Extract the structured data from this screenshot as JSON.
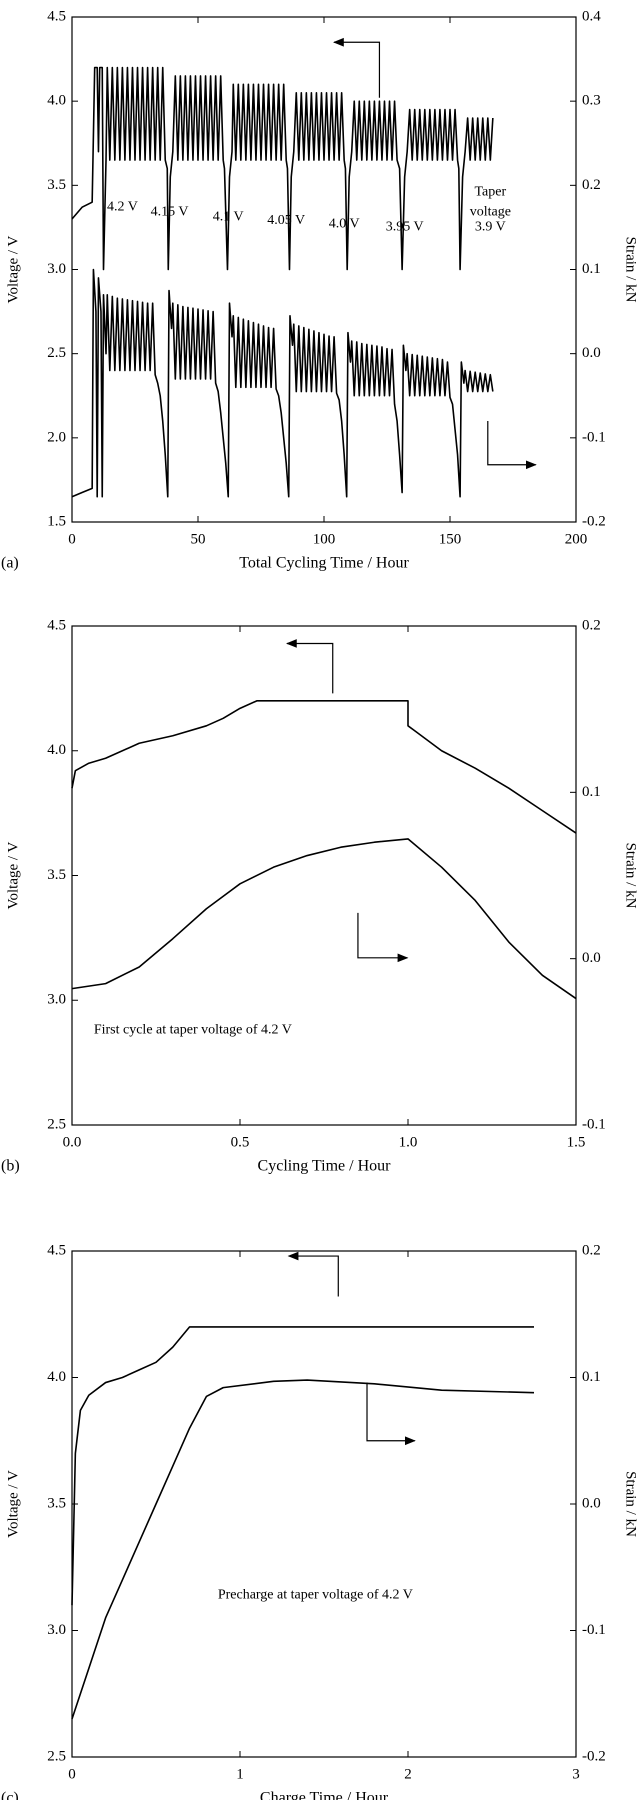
{
  "chart_data": [
    {
      "type": "line",
      "panel": "(a)",
      "xlabel": "Total Cycling Time / Hour",
      "ylabel": "Voltage / V",
      "y2label": "Strain / kN",
      "xlim": [
        0,
        200
      ],
      "xticks": [
        0,
        50,
        100,
        150,
        200
      ],
      "ylim": [
        1.5,
        4.5
      ],
      "yticks": [
        1.5,
        {
          "value": 2,
          "label": "2.0"
        },
        2.5,
        {
          "value": 3,
          "label": "3.0"
        },
        3.5,
        {
          "value": 4,
          "label": "4.0"
        },
        4.5
      ],
      "y2lim": [
        -0.2,
        0.4
      ],
      "y2ticks": [
        -0.2,
        -0.1,
        {
          "value": 0,
          "label": "0.0"
        },
        0.1,
        0.2,
        0.3,
        0.4
      ],
      "annotations": [
        "4.2 V",
        "4.15 V",
        "4.1 V",
        "4.05 V",
        "4.0 V",
        "3.95 V",
        "Taper",
        "voltage",
        "3.9 V"
      ],
      "series": [
        {
          "color": "#000000",
          "axis": "y",
          "x": [
            0,
            4,
            8,
            9,
            10,
            10.5,
            11,
            12,
            12.5,
            13.5,
            14,
            15,
            16,
            17,
            18,
            19,
            20,
            21,
            22,
            23,
            24,
            25,
            26,
            27,
            28,
            29,
            30,
            31,
            32,
            33,
            34,
            35,
            36,
            37,
            37.8,
            38.2,
            39,
            40,
            41,
            42,
            43,
            44,
            45,
            46,
            47,
            48,
            49,
            50,
            51,
            52,
            53,
            54,
            55,
            56,
            57,
            58,
            59,
            60,
            60.5,
            61.7,
            62.5,
            63.5,
            64,
            65,
            66,
            67,
            68,
            69,
            70,
            71,
            72,
            73,
            74,
            75,
            76,
            77,
            78,
            79,
            80,
            81,
            82,
            83,
            84,
            85,
            85.5,
            86.3,
            87,
            88,
            89,
            90,
            91,
            92,
            93,
            94,
            95,
            96,
            97,
            98,
            99,
            100,
            101,
            102,
            103,
            104,
            105,
            106,
            107,
            108,
            108.5,
            109.2,
            110,
            111,
            112,
            113,
            114,
            115,
            116,
            117,
            118,
            119,
            120,
            121,
            122,
            123,
            124,
            125,
            126,
            127,
            128,
            129,
            130,
            131,
            132,
            133,
            134,
            135,
            136,
            137,
            138,
            139,
            140,
            141,
            142,
            143,
            144,
            145,
            146,
            147,
            148,
            149,
            150,
            151,
            152,
            153,
            153.5,
            154,
            155,
            156,
            157,
            158,
            159,
            160,
            161,
            162,
            163,
            164,
            165,
            166,
            167
          ],
          "values": [
            3.3,
            3.37,
            3.4,
            4.2,
            4.2,
            3.7,
            4.2,
            4.2,
            3.0,
            3.65,
            4.2,
            3.65,
            4.2,
            3.65,
            4.2,
            3.65,
            4.2,
            3.65,
            4.2,
            3.65,
            4.2,
            3.65,
            4.2,
            3.65,
            4.2,
            3.65,
            4.2,
            3.65,
            4.2,
            3.65,
            4.2,
            3.65,
            4.2,
            3.65,
            3.6,
            3.0,
            3.55,
            3.7,
            4.15,
            3.65,
            4.15,
            3.65,
            4.15,
            3.65,
            4.15,
            3.65,
            4.15,
            3.65,
            4.15,
            3.65,
            4.15,
            3.65,
            4.15,
            3.65,
            4.15,
            3.65,
            4.15,
            3.65,
            3.6,
            3.0,
            3.55,
            3.7,
            4.1,
            3.65,
            4.1,
            3.65,
            4.1,
            3.65,
            4.1,
            3.65,
            4.1,
            3.65,
            4.1,
            3.65,
            4.1,
            3.65,
            4.1,
            3.65,
            4.1,
            3.65,
            4.1,
            3.65,
            4.1,
            3.65,
            3.6,
            3.0,
            3.55,
            3.7,
            4.05,
            3.65,
            4.05,
            3.65,
            4.05,
            3.65,
            4.05,
            3.65,
            4.05,
            3.65,
            4.05,
            3.65,
            4.05,
            3.65,
            4.05,
            3.65,
            4.05,
            3.65,
            4.05,
            3.65,
            3.6,
            3.0,
            3.55,
            3.7,
            4.0,
            3.65,
            4.0,
            3.65,
            4.0,
            3.65,
            4.0,
            3.65,
            4.0,
            3.65,
            4.0,
            3.65,
            4.0,
            3.65,
            4.0,
            3.65,
            4.0,
            3.65,
            3.6,
            3.0,
            3.55,
            3.7,
            3.95,
            3.65,
            3.95,
            3.65,
            3.95,
            3.65,
            3.95,
            3.65,
            3.95,
            3.65,
            3.95,
            3.65,
            3.95,
            3.65,
            3.95,
            3.65,
            3.95,
            3.65,
            3.95,
            3.65,
            3.6,
            3.0,
            3.55,
            3.7,
            3.9,
            3.65,
            3.9,
            3.65,
            3.9,
            3.65,
            3.9,
            3.65,
            3.9,
            3.65,
            3.9
          ]
        },
        {
          "color": "#000000",
          "axis": "y2",
          "x": [
            0,
            4,
            8,
            8.5,
            9.5,
            10,
            10.5,
            11.5,
            12,
            12.5,
            13.5,
            14,
            15,
            16,
            17,
            18,
            19,
            20,
            21,
            22,
            23,
            24,
            25,
            26,
            27,
            28,
            29,
            30,
            31,
            32,
            33,
            34,
            35,
            36,
            37,
            38,
            38.5,
            39.5,
            40,
            41,
            42,
            43,
            44,
            45,
            46,
            47,
            48,
            49,
            50,
            51,
            52,
            53,
            54,
            55,
            56,
            57,
            58,
            59,
            60,
            61,
            62,
            62.5,
            63.5,
            64,
            65,
            66,
            67,
            68,
            69,
            70,
            71,
            72,
            73,
            74,
            75,
            76,
            77,
            78,
            79,
            80,
            81,
            82,
            83,
            84,
            85,
            86,
            86.5,
            87.5,
            88,
            89,
            90,
            91,
            92,
            93,
            94,
            95,
            96,
            97,
            98,
            99,
            100,
            101,
            102,
            103,
            104,
            105,
            106,
            107,
            108,
            109,
            109.5,
            110.5,
            111,
            112,
            113,
            114,
            115,
            116,
            117,
            118,
            119,
            120,
            121,
            122,
            123,
            124,
            125,
            126,
            127,
            128,
            129,
            130,
            131,
            131.5,
            132.5,
            133,
            134,
            135,
            136,
            137,
            138,
            139,
            140,
            141,
            142,
            143,
            144,
            145,
            146,
            147,
            148,
            149,
            150,
            151,
            152,
            153,
            154,
            154.5,
            155.5,
            156,
            157,
            158,
            159,
            160,
            161,
            162,
            163,
            164,
            165,
            166,
            167
          ],
          "values": [
            -0.17,
            -0.165,
            -0.16,
            0.1,
            0.05,
            -0.17,
            0.09,
            0.05,
            -0.17,
            0.07,
            0,
            0.07,
            -0.02,
            0.068,
            -0.02,
            0.066,
            -0.02,
            0.065,
            -0.02,
            0.064,
            -0.02,
            0.063,
            -0.02,
            0.062,
            -0.02,
            0.061,
            -0.02,
            0.06,
            -0.02,
            0.06,
            -0.025,
            -0.035,
            -0.05,
            -0.08,
            -0.12,
            -0.17,
            0.075,
            0.03,
            0.06,
            -0.03,
            0.058,
            -0.03,
            0.056,
            -0.03,
            0.055,
            -0.03,
            0.054,
            -0.03,
            0.053,
            -0.03,
            0.052,
            -0.03,
            0.051,
            -0.03,
            0.05,
            -0.035,
            -0.045,
            -0.07,
            -0.1,
            -0.13,
            -0.17,
            0.06,
            0.02,
            0.045,
            -0.04,
            0.043,
            -0.04,
            0.041,
            -0.04,
            0.039,
            -0.04,
            0.037,
            -0.04,
            0.035,
            -0.04,
            0.033,
            -0.04,
            0.031,
            -0.04,
            0.03,
            -0.042,
            -0.05,
            -0.07,
            -0.1,
            -0.13,
            -0.17,
            0.045,
            0.01,
            0.035,
            -0.045,
            0.033,
            -0.045,
            0.031,
            -0.045,
            0.029,
            -0.045,
            0.027,
            -0.045,
            0.025,
            -0.045,
            0.023,
            -0.045,
            0.021,
            -0.045,
            0.02,
            -0.047,
            -0.055,
            -0.08,
            -0.12,
            -0.17,
            0.025,
            -0.01,
            0.015,
            -0.05,
            0.014,
            -0.05,
            0.012,
            -0.05,
            0.011,
            -0.05,
            0.01,
            -0.05,
            0.009,
            -0.05,
            0.008,
            -0.05,
            0.006,
            -0.05,
            0.005,
            -0.06,
            -0.08,
            -0.12,
            -0.165,
            0.01,
            -0.02,
            0,
            -0.05,
            -0.001,
            -0.05,
            -0.002,
            -0.05,
            -0.003,
            -0.05,
            -0.004,
            -0.05,
            -0.005,
            -0.05,
            -0.006,
            -0.05,
            -0.007,
            -0.05,
            -0.01,
            -0.052,
            -0.06,
            -0.09,
            -0.12,
            -0.17,
            -0.01,
            -0.035,
            -0.02,
            -0.045,
            -0.021,
            -0.045,
            -0.022,
            -0.045,
            -0.023,
            -0.045,
            -0.024,
            -0.045,
            -0.025,
            -0.045
          ]
        }
      ]
    },
    {
      "type": "line",
      "panel": "(b)",
      "xlabel": "Cycling Time / Hour",
      "ylabel": "Voltage / V",
      "y2label": "Strain / kN",
      "xlim": [
        0,
        1.5
      ],
      "xticks": [
        {
          "value": 0,
          "label": "0.0"
        },
        0.5,
        {
          "value": 1,
          "label": "1.0"
        },
        1.5
      ],
      "ylim": [
        2.5,
        4.5
      ],
      "yticks": [
        2.5,
        {
          "value": 3,
          "label": "3.0"
        },
        3.5,
        {
          "value": 4,
          "label": "4.0"
        },
        4.5
      ],
      "y2lim": [
        -0.1,
        0.2
      ],
      "y2ticks": [
        -0.1,
        {
          "value": 0,
          "label": "0.0"
        },
        0.1,
        0.2
      ],
      "annotations": [
        "First cycle at taper voltage of 4.2 V"
      ],
      "series": [
        {
          "color": "#000000",
          "axis": "y",
          "x": [
            0,
            0.01,
            0.05,
            0.1,
            0.2,
            0.3,
            0.4,
            0.45,
            0.5,
            0.55,
            1.0,
            1.0,
            1.02,
            1.1,
            1.2,
            1.3,
            1.4,
            1.5
          ],
          "values": [
            3.85,
            3.92,
            3.95,
            3.97,
            4.03,
            4.06,
            4.1,
            4.13,
            4.17,
            4.2,
            4.2,
            4.1,
            4.08,
            4.0,
            3.93,
            3.85,
            3.76,
            3.67
          ]
        },
        {
          "color": "#000000",
          "axis": "y2",
          "x": [
            0,
            0.1,
            0.2,
            0.3,
            0.4,
            0.5,
            0.6,
            0.7,
            0.8,
            0.9,
            1.0,
            1.1,
            1.2,
            1.3,
            1.4,
            1.5
          ],
          "values": [
            -0.018,
            -0.015,
            -0.005,
            0.012,
            0.03,
            0.045,
            0.055,
            0.062,
            0.067,
            0.07,
            0.072,
            0.055,
            0.035,
            0.01,
            -0.01,
            -0.024
          ]
        }
      ]
    },
    {
      "type": "line",
      "panel": "(c)",
      "xlabel": "Charge Time / Hour",
      "ylabel": "Voltage / V",
      "y2label": "Strain / kN",
      "xlim": [
        0,
        3
      ],
      "xticks": [
        0,
        1,
        2,
        3
      ],
      "ylim": [
        2.5,
        4.5
      ],
      "yticks": [
        2.5,
        {
          "value": 3,
          "label": "3.0"
        },
        3.5,
        {
          "value": 4,
          "label": "4.0"
        },
        4.5
      ],
      "y2lim": [
        -0.2,
        0.2
      ],
      "y2ticks": [
        -0.2,
        -0.1,
        {
          "value": 0,
          "label": "0.0"
        },
        0.1,
        0.2
      ],
      "annotations": [
        "Precharge at taper voltage of 4.2 V"
      ],
      "series": [
        {
          "color": "#000000",
          "axis": "y",
          "x": [
            0,
            0.02,
            0.05,
            0.1,
            0.2,
            0.3,
            0.4,
            0.5,
            0.6,
            0.7,
            2.75
          ],
          "values": [
            3.1,
            3.7,
            3.87,
            3.93,
            3.98,
            4.0,
            4.03,
            4.06,
            4.12,
            4.2,
            4.2
          ]
        },
        {
          "color": "#000000",
          "axis": "y2",
          "x": [
            0,
            0.1,
            0.2,
            0.3,
            0.4,
            0.5,
            0.6,
            0.7,
            0.8,
            0.9,
            1.2,
            1.4,
            1.8,
            2.2,
            2.75
          ],
          "values": [
            -0.17,
            -0.13,
            -0.09,
            -0.06,
            -0.03,
            0,
            0.03,
            0.06,
            0.085,
            0.092,
            0.097,
            0.098,
            0.095,
            0.09,
            0.088
          ]
        }
      ]
    }
  ]
}
